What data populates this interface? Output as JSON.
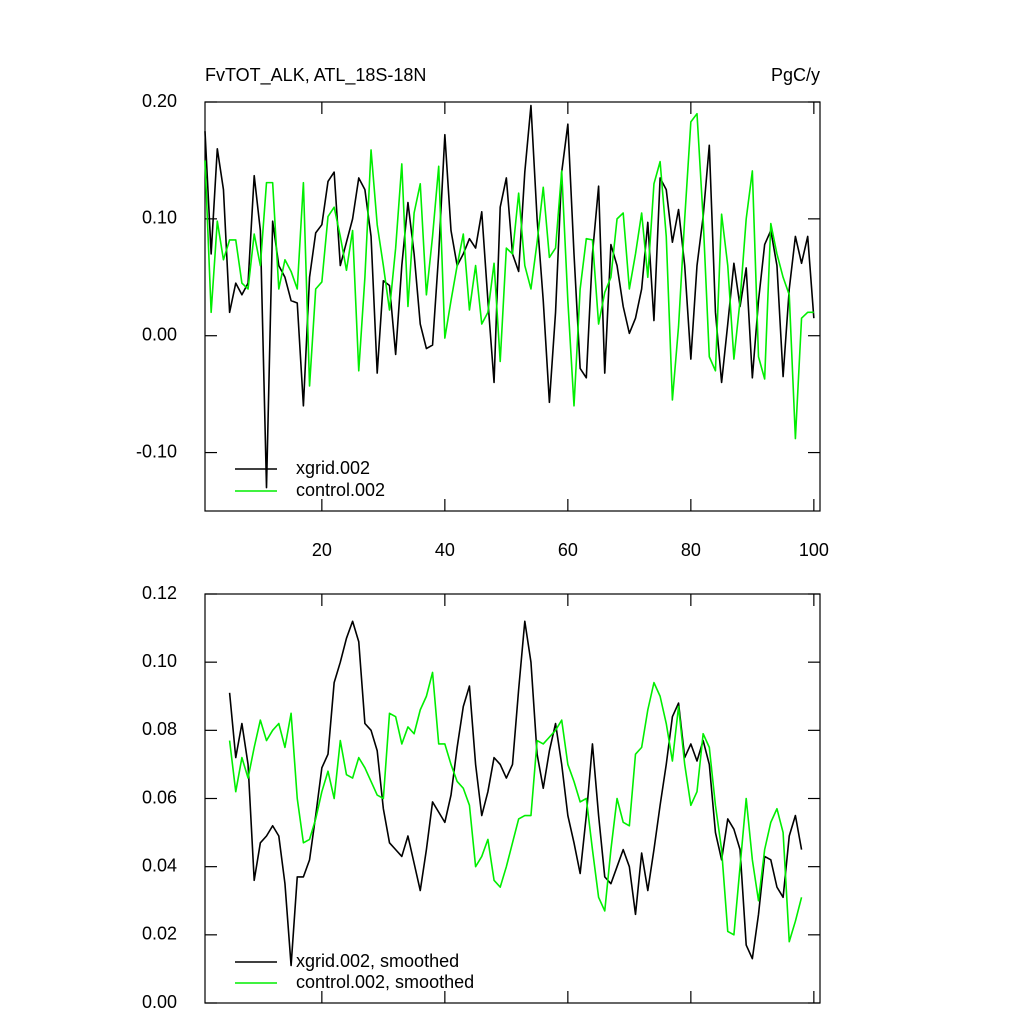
{
  "chart_data": [
    {
      "type": "line",
      "title": "FvTOT_ALK, ATL_18S-18N",
      "right_title": "PgC/y",
      "x": [
        1,
        2,
        3,
        4,
        5,
        6,
        7,
        8,
        9,
        10,
        11,
        12,
        13,
        14,
        15,
        16,
        17,
        18,
        19,
        20,
        21,
        22,
        23,
        24,
        25,
        26,
        27,
        28,
        29,
        30,
        31,
        32,
        33,
        34,
        35,
        36,
        37,
        38,
        39,
        40,
        41,
        42,
        43,
        44,
        45,
        46,
        47,
        48,
        49,
        50,
        51,
        52,
        53,
        54,
        55,
        56,
        57,
        58,
        59,
        60,
        61,
        62,
        63,
        64,
        65,
        66,
        67,
        68,
        69,
        70,
        71,
        72,
        73,
        74,
        75,
        76,
        77,
        78,
        79,
        80,
        81,
        82,
        83,
        84,
        85,
        86,
        87,
        88,
        89,
        90,
        91,
        92,
        93,
        94,
        95,
        96,
        97,
        98,
        99,
        100
      ],
      "xlim": [
        1,
        101
      ],
      "xticks": [
        20,
        40,
        60,
        80,
        100
      ],
      "ylim": [
        -0.15,
        0.2
      ],
      "yticks": [
        {
          "value": -0.1,
          "label": "-0.10"
        },
        {
          "value": 0,
          "label": "0.00"
        },
        {
          "value": 0.1,
          "label": "0.10"
        },
        {
          "value": 0.2,
          "label": "0.20"
        }
      ],
      "series": [
        {
          "name": "xgrid.002",
          "color": "#000000",
          "values": [
            0.175,
            0.07,
            0.16,
            0.125,
            0.02,
            0.045,
            0.035,
            0.045,
            0.137,
            0.09,
            -0.13,
            0.098,
            0.06,
            0.05,
            0.03,
            0.028,
            -0.06,
            0.05,
            0.088,
            0.095,
            0.132,
            0.14,
            0.06,
            0.08,
            0.1,
            0.135,
            0.125,
            0.085,
            -0.032,
            0.047,
            0.043,
            -0.016,
            0.06,
            0.114,
            0.07,
            0.01,
            -0.011,
            -0.008,
            0.07,
            0.172,
            0.09,
            0.06,
            0.07,
            0.083,
            0.075,
            0.106,
            0.03,
            -0.04,
            0.11,
            0.135,
            0.07,
            0.055,
            0.14,
            0.197,
            0.1,
            0.03,
            -0.057,
            0.02,
            0.14,
            0.181,
            0.07,
            -0.028,
            -0.036,
            0.07,
            0.128,
            -0.032,
            0.078,
            0.06,
            0.025,
            0.002,
            0.015,
            0.04,
            0.097,
            0.013,
            0.135,
            0.125,
            0.08,
            0.108,
            0.06,
            -0.02,
            0.06,
            0.102,
            0.163,
            0.02,
            -0.04,
            0.01,
            0.062,
            0.025,
            0.058,
            -0.036,
            0.03,
            0.078,
            0.09,
            0.06,
            -0.035,
            0.04,
            0.085,
            0.062,
            0.085,
            0.015
          ]
        },
        {
          "name": "control.002",
          "color": "#00ee00",
          "values": [
            0.15,
            0.02,
            0.098,
            0.065,
            0.082,
            0.082,
            0.045,
            0.04,
            0.087,
            0.06,
            0.131,
            0.131,
            0.04,
            0.065,
            0.055,
            0.04,
            0.131,
            -0.043,
            0.04,
            0.046,
            0.102,
            0.11,
            0.085,
            0.056,
            0.09,
            -0.03,
            0.05,
            0.159,
            0.095,
            0.06,
            0.022,
            0.075,
            0.147,
            0.025,
            0.105,
            0.13,
            0.035,
            0.085,
            0.145,
            -0.002,
            0.03,
            0.06,
            0.087,
            0.022,
            0.06,
            0.01,
            0.02,
            0.062,
            -0.022,
            0.075,
            0.07,
            0.122,
            0.06,
            0.04,
            0.08,
            0.127,
            0.067,
            0.075,
            0.141,
            0.03,
            -0.06,
            0.04,
            0.083,
            0.082,
            0.01,
            0.037,
            0.05,
            0.1,
            0.105,
            0.04,
            0.07,
            0.105,
            0.05,
            0.13,
            0.149,
            0.085,
            -0.055,
            0.008,
            0.1,
            0.183,
            0.19,
            0.1,
            -0.018,
            -0.03,
            0.104,
            0.06,
            -0.02,
            0.03,
            0.1,
            0.141,
            -0.018,
            -0.037,
            0.096,
            0.07,
            0.05,
            0.035,
            -0.088,
            0.015,
            0.02,
            0.02
          ]
        }
      ]
    },
    {
      "type": "line",
      "x": [
        5,
        6,
        7,
        8,
        9,
        10,
        11,
        12,
        13,
        14,
        15,
        16,
        17,
        18,
        19,
        20,
        21,
        22,
        23,
        24,
        25,
        26,
        27,
        28,
        29,
        30,
        31,
        32,
        33,
        34,
        35,
        36,
        37,
        38,
        39,
        40,
        41,
        42,
        43,
        44,
        45,
        46,
        47,
        48,
        49,
        50,
        51,
        52,
        53,
        54,
        55,
        56,
        57,
        58,
        59,
        60,
        61,
        62,
        63,
        64,
        65,
        66,
        67,
        68,
        69,
        70,
        71,
        72,
        73,
        74,
        75,
        76,
        77,
        78,
        79,
        80,
        81,
        82,
        83,
        84,
        85,
        86,
        87,
        88,
        89,
        90,
        91,
        92,
        93,
        94,
        95,
        96,
        97,
        98
      ],
      "xlim": [
        1,
        101
      ],
      "ylim": [
        0,
        0.12
      ],
      "yticks": [
        {
          "value": 0,
          "label": "0.00"
        },
        {
          "value": 0.02,
          "label": "0.02"
        },
        {
          "value": 0.04,
          "label": "0.04"
        },
        {
          "value": 0.06,
          "label": "0.06"
        },
        {
          "value": 0.08,
          "label": "0.08"
        },
        {
          "value": 0.1,
          "label": "0.10"
        },
        {
          "value": 0.12,
          "label": "0.12"
        }
      ],
      "series": [
        {
          "name": "xgrid.002, smoothed",
          "color": "#000000",
          "values": [
            0.091,
            0.072,
            0.082,
            0.07,
            0.036,
            0.047,
            0.049,
            0.052,
            0.049,
            0.035,
            0.011,
            0.037,
            0.037,
            0.042,
            0.055,
            0.069,
            0.073,
            0.094,
            0.1,
            0.107,
            0.112,
            0.106,
            0.082,
            0.08,
            0.074,
            0.057,
            0.047,
            0.045,
            0.043,
            0.049,
            0.041,
            0.033,
            0.045,
            0.059,
            0.056,
            0.053,
            0.061,
            0.075,
            0.087,
            0.093,
            0.07,
            0.055,
            0.062,
            0.072,
            0.07,
            0.066,
            0.07,
            0.092,
            0.112,
            0.1,
            0.073,
            0.063,
            0.074,
            0.082,
            0.07,
            0.055,
            0.047,
            0.038,
            0.055,
            0.076,
            0.055,
            0.037,
            0.035,
            0.04,
            0.045,
            0.04,
            0.026,
            0.044,
            0.033,
            0.045,
            0.058,
            0.07,
            0.084,
            0.088,
            0.072,
            0.076,
            0.071,
            0.077,
            0.07,
            0.05,
            0.042,
            0.054,
            0.051,
            0.045,
            0.017,
            0.013,
            0.026,
            0.043,
            0.042,
            0.034,
            0.031,
            0.049,
            0.055,
            0.045
          ]
        },
        {
          "name": "control.002, smoothed",
          "color": "#00ee00",
          "values": [
            0.077,
            0.062,
            0.072,
            0.066,
            0.075,
            0.083,
            0.077,
            0.08,
            0.082,
            0.075,
            0.085,
            0.06,
            0.047,
            0.048,
            0.054,
            0.062,
            0.068,
            0.06,
            0.077,
            0.067,
            0.066,
            0.072,
            0.069,
            0.065,
            0.061,
            0.06,
            0.085,
            0.084,
            0.076,
            0.081,
            0.079,
            0.086,
            0.09,
            0.097,
            0.076,
            0.076,
            0.07,
            0.065,
            0.063,
            0.058,
            0.04,
            0.043,
            0.048,
            0.036,
            0.034,
            0.04,
            0.047,
            0.054,
            0.055,
            0.055,
            0.077,
            0.076,
            0.078,
            0.08,
            0.083,
            0.07,
            0.065,
            0.059,
            0.06,
            0.045,
            0.031,
            0.027,
            0.045,
            0.06,
            0.053,
            0.052,
            0.073,
            0.075,
            0.086,
            0.094,
            0.09,
            0.082,
            0.071,
            0.087,
            0.07,
            0.058,
            0.062,
            0.079,
            0.075,
            0.058,
            0.045,
            0.021,
            0.02,
            0.04,
            0.06,
            0.042,
            0.03,
            0.045,
            0.053,
            0.057,
            0.05,
            0.018,
            0.024,
            0.031
          ]
        }
      ]
    }
  ]
}
